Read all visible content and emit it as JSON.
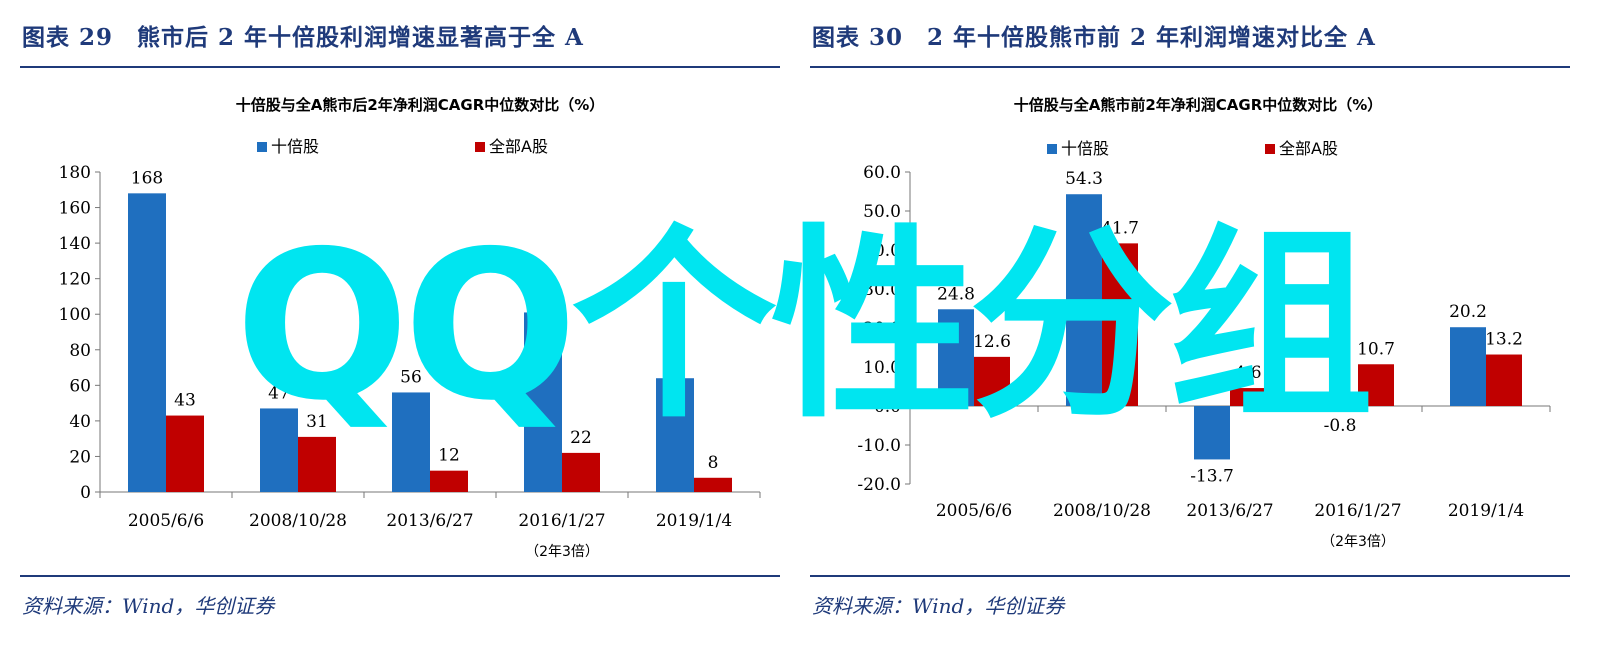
{
  "panels": [
    {
      "fig_title": "图表 29　熊市后 2 年十倍股利润增速显著高于全 A",
      "source": "资料来源：Wind，华创证券"
    },
    {
      "fig_title": "图表 30　2 年十倍股熊市前 2 年利润增速对比全 A",
      "source": "资料来源：Wind，华创证券"
    }
  ],
  "watermark": "QQ个性分组",
  "colors": {
    "series1": "#1f6fbf",
    "series2": "#c00000",
    "title": "#1f3a7a",
    "watermark": "#00e5f0"
  },
  "chart_data": [
    {
      "type": "bar",
      "title": "十倍股与全A熊市后2年净利润CAGR中位数对比（%）",
      "categories": [
        "2005/6/6",
        "2008/10/28",
        "2013/6/27",
        "2016/1/27",
        "2019/1/4"
      ],
      "note": "（2年3倍）",
      "series": [
        {
          "name": "十倍股",
          "values": [
            168,
            47,
            56,
            101,
            64
          ],
          "labels": [
            "168",
            "47",
            "56",
            "101",
            "64"
          ]
        },
        {
          "name": "全部A股",
          "values": [
            43,
            31,
            12,
            22,
            8
          ],
          "labels": [
            "43",
            "31",
            "12",
            "22",
            "8"
          ]
        }
      ],
      "ylim": [
        0,
        180
      ],
      "yticks": [
        0,
        20,
        40,
        60,
        80,
        100,
        120,
        140,
        160,
        180
      ],
      "ytick_labels": [
        "0",
        "20",
        "40",
        "60",
        "80",
        "100",
        "120",
        "140",
        "160",
        "180"
      ],
      "legend": "top-center",
      "grid": false
    },
    {
      "type": "bar",
      "title": "十倍股与全A熊市前2年净利润CAGR中位数对比（%）",
      "categories": [
        "2005/6/6",
        "2008/10/28",
        "2013/6/27",
        "2016/1/27",
        "2019/1/4"
      ],
      "note": "（2年3倍）",
      "series": [
        {
          "name": "十倍股",
          "values": [
            24.8,
            54.3,
            -13.7,
            -0.8,
            20.2
          ],
          "labels": [
            "24.8",
            "54.3",
            "-13.7",
            "-0.8",
            "20.2"
          ]
        },
        {
          "name": "全部A股",
          "values": [
            12.6,
            41.7,
            4.6,
            10.7,
            13.2
          ],
          "labels": [
            "12.6",
            "41.7",
            "4.6",
            "10.7",
            "13.2"
          ]
        }
      ],
      "ylim": [
        -20,
        60
      ],
      "yticks": [
        -20,
        -10,
        0,
        10,
        20,
        30,
        40,
        50,
        60
      ],
      "ytick_labels": [
        "-20.0",
        "-10.0",
        "0.0",
        "10.0",
        "20.0",
        "30.0",
        "40.0",
        "50.0",
        "60.0"
      ],
      "legend": "top-center",
      "grid": false
    }
  ]
}
